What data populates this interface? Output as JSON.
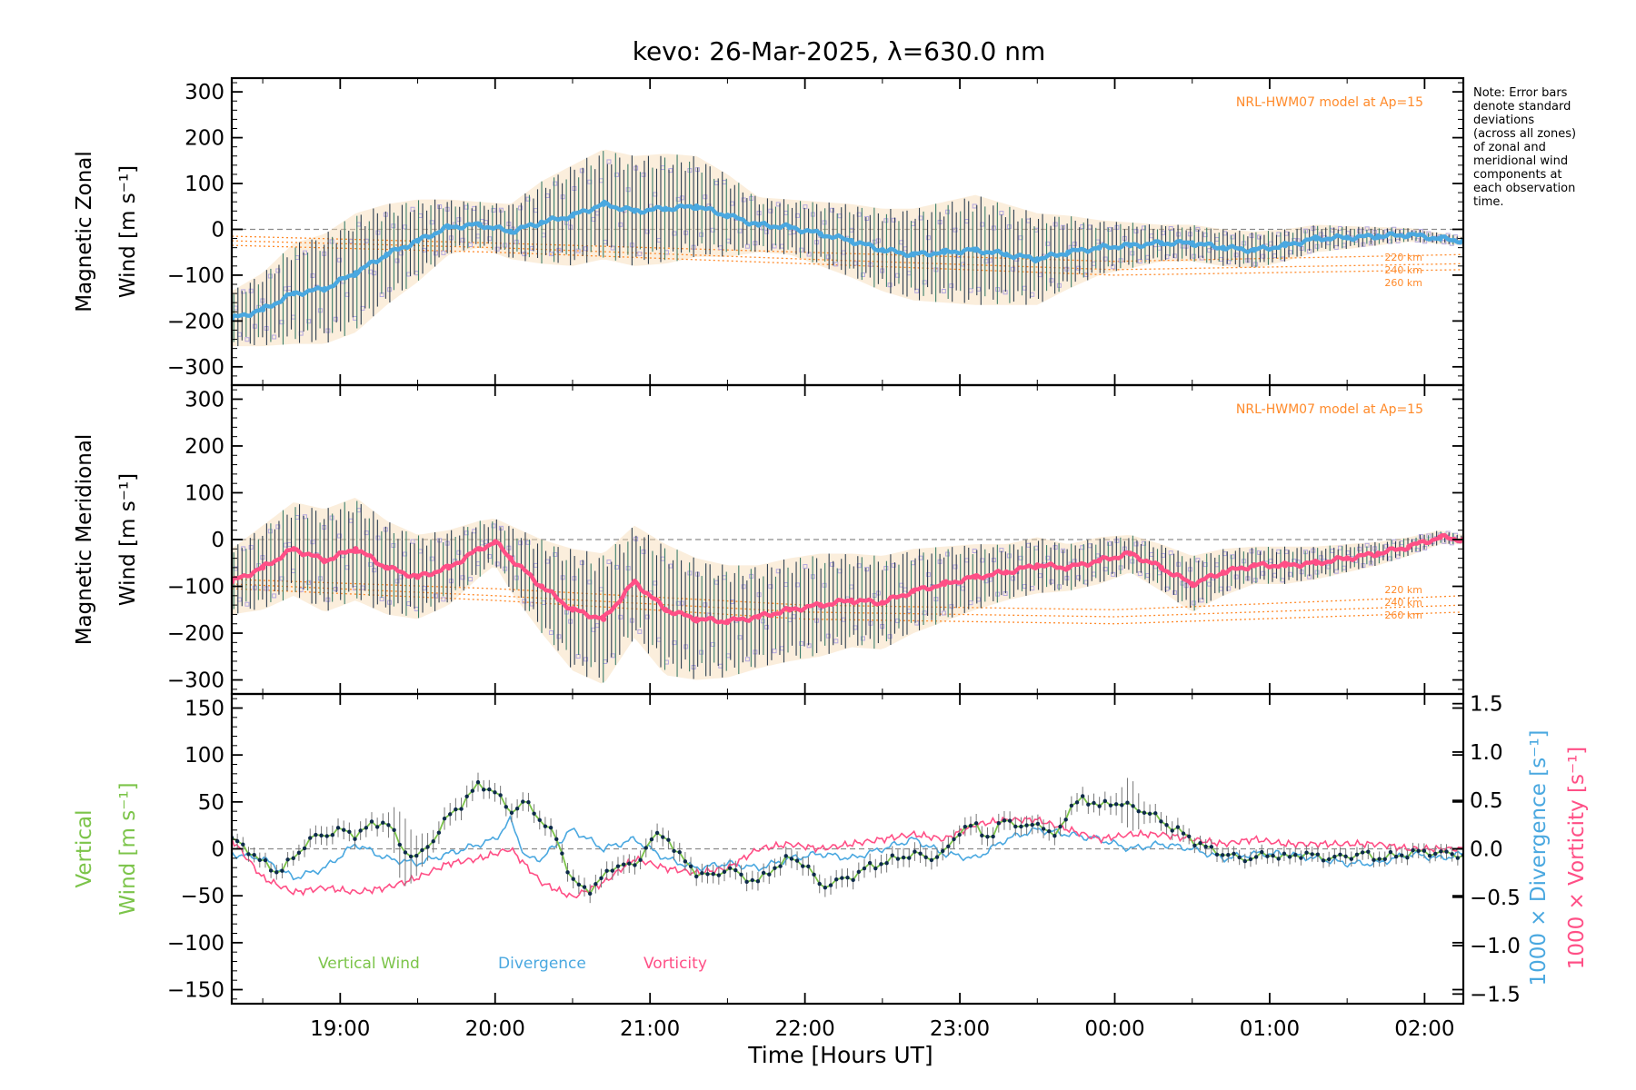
{
  "title": "kevo: 26-Mar-2025, λ=630.0 nm",
  "note_lines": [
    "Note: Error bars",
    "denote standard",
    "deviations",
    "(across all zones)",
    "of zonal and",
    "meridional wind",
    "components at",
    "each observation",
    "time."
  ],
  "colors": {
    "zonal": "#4aa8e0",
    "meridional": "#ff4f86",
    "vertical": "#7cc44a",
    "divergence": "#4aa8e0",
    "vorticity": "#ff4f86",
    "model": "#ff8a2a",
    "scatter": "#b4a8de",
    "errorbar": "#2c3e50",
    "zero_line": "#8a8a8a"
  },
  "chart_data": [
    {
      "type": "line",
      "panel": "zonal",
      "title": "",
      "xlabel": "",
      "ylabel_line1": "Magnetic Zonal",
      "ylabel_line2": "Wind [m s⁻¹]",
      "xlim": [
        18.3,
        26.25
      ],
      "ylim": [
        -340,
        330
      ],
      "yticks": [
        300,
        200,
        100,
        0,
        -100,
        -200,
        -300
      ],
      "yticklabels": [
        "300",
        "200",
        "100",
        "0",
        "−100",
        "−200",
        "−300"
      ],
      "model_label": "NRL-HWM07 model at Ap=15",
      "model_heights": [
        "220 km",
        "240 km",
        "260 km"
      ],
      "model_lines": [
        {
          "name": "220 km",
          "x": [
            18.3,
            20,
            22,
            24,
            26.25
          ],
          "y": [
            -15,
            -30,
            -50,
            -70,
            -55
          ]
        },
        {
          "name": "240 km",
          "x": [
            18.3,
            20,
            22,
            24,
            26.25
          ],
          "y": [
            -25,
            -40,
            -65,
            -88,
            -75
          ]
        },
        {
          "name": "260 km",
          "x": [
            18.3,
            20,
            22,
            24,
            26.25
          ],
          "y": [
            -35,
            -50,
            -75,
            -100,
            -88
          ]
        }
      ],
      "series": [
        {
          "name": "Mean zonal wind",
          "x": [
            18.3,
            18.5,
            18.7,
            18.9,
            19.1,
            19.3,
            19.5,
            19.7,
            19.9,
            20.1,
            20.3,
            20.5,
            20.7,
            20.9,
            21.1,
            21.3,
            21.5,
            21.7,
            21.9,
            22.1,
            22.3,
            22.5,
            22.7,
            22.9,
            23.1,
            23.3,
            23.5,
            23.7,
            23.9,
            24.1,
            24.3,
            24.5,
            24.7,
            24.9,
            25.1,
            25.3,
            25.5,
            25.7,
            25.9,
            26.1,
            26.25
          ],
          "y": [
            -195,
            -175,
            -140,
            -130,
            -95,
            -55,
            -25,
            5,
            10,
            -5,
            15,
            30,
            55,
            40,
            45,
            50,
            30,
            10,
            5,
            -10,
            -25,
            -45,
            -55,
            -50,
            -45,
            -55,
            -65,
            -50,
            -40,
            -35,
            -30,
            -30,
            -40,
            -45,
            -35,
            -20,
            -18,
            -15,
            -12,
            -20,
            -25
          ],
          "err": [
            60,
            80,
            110,
            120,
            130,
            110,
            90,
            60,
            50,
            60,
            90,
            110,
            120,
            120,
            120,
            110,
            90,
            60,
            60,
            70,
            80,
            90,
            100,
            110,
            120,
            110,
            100,
            80,
            60,
            50,
            40,
            40,
            40,
            40,
            35,
            30,
            25,
            20,
            15,
            12,
            10
          ]
        }
      ]
    },
    {
      "type": "line",
      "panel": "meridional",
      "title": "",
      "xlabel": "",
      "ylabel_line1": "Magnetic Meridional",
      "ylabel_line2": "Wind [m s⁻¹]",
      "xlim": [
        18.3,
        26.25
      ],
      "ylim": [
        -330,
        330
      ],
      "yticks": [
        300,
        200,
        100,
        0,
        -100,
        -200,
        -300
      ],
      "yticklabels": [
        "300",
        "200",
        "100",
        "0",
        "−100",
        "−200",
        "−300"
      ],
      "model_label": "NRL-HWM07 model at Ap=15",
      "model_heights": [
        "220 km",
        "240 km",
        "260 km"
      ],
      "model_lines": [
        {
          "name": "220 km",
          "x": [
            18.3,
            20,
            22,
            24,
            26.25
          ],
          "y": [
            -85,
            -105,
            -140,
            -150,
            -120
          ]
        },
        {
          "name": "240 km",
          "x": [
            18.3,
            20,
            22,
            24,
            26.25
          ],
          "y": [
            -95,
            -120,
            -155,
            -165,
            -140
          ]
        },
        {
          "name": "260 km",
          "x": [
            18.3,
            20,
            22,
            24,
            26.25
          ],
          "y": [
            -105,
            -130,
            -170,
            -180,
            -155
          ]
        }
      ],
      "series": [
        {
          "name": "Mean meridional wind",
          "x": [
            18.3,
            18.5,
            18.7,
            18.9,
            19.1,
            19.3,
            19.5,
            19.7,
            19.9,
            20.0,
            20.1,
            20.3,
            20.5,
            20.7,
            20.9,
            21.1,
            21.3,
            21.5,
            21.7,
            21.9,
            22.1,
            22.3,
            22.5,
            22.7,
            22.9,
            23.1,
            23.3,
            23.5,
            23.7,
            23.9,
            24.1,
            24.3,
            24.5,
            24.7,
            24.9,
            25.1,
            25.3,
            25.5,
            25.7,
            25.9,
            26.1,
            26.25
          ],
          "y": [
            -90,
            -60,
            -20,
            -45,
            -20,
            -60,
            -80,
            -60,
            -20,
            -5,
            -40,
            -100,
            -150,
            -170,
            -90,
            -150,
            -170,
            -175,
            -165,
            -150,
            -140,
            -130,
            -135,
            -110,
            -95,
            -80,
            -70,
            -55,
            -60,
            -45,
            -30,
            -60,
            -95,
            -70,
            -55,
            -55,
            -50,
            -40,
            -30,
            -15,
            5,
            0
          ],
          "err": [
            70,
            90,
            100,
            110,
            110,
            100,
            90,
            80,
            60,
            50,
            70,
            100,
            130,
            140,
            120,
            140,
            130,
            120,
            110,
            110,
            110,
            100,
            100,
            90,
            80,
            70,
            60,
            60,
            50,
            50,
            40,
            50,
            60,
            50,
            40,
            40,
            35,
            30,
            25,
            20,
            15,
            10
          ]
        }
      ]
    },
    {
      "type": "line",
      "panel": "vertical",
      "title": "",
      "xlabel": "Time [Hours UT]",
      "ylabel_line1": "Vertical",
      "ylabel_line2": "Wind [m s⁻¹]",
      "ylabel_right1": "1000 × Divergence [s⁻¹]",
      "ylabel_right2": "1000 × Vorticity [s⁻¹]",
      "xlim": [
        18.3,
        26.25
      ],
      "ylim": [
        -165,
        165
      ],
      "y2lim": [
        -1.6,
        1.6
      ],
      "yticks": [
        150,
        100,
        50,
        0,
        -50,
        -100,
        -150
      ],
      "yticklabels": [
        "150",
        "100",
        "50",
        "0",
        "−50",
        "−100",
        "−150"
      ],
      "y2ticks": [
        1.5,
        1.0,
        0.5,
        0.0,
        -0.5,
        -1.0,
        -1.5
      ],
      "y2ticklabels": [
        "1.5",
        "1.0",
        "0.5",
        "0.0",
        "−0.5",
        "−1.0",
        "−1.5"
      ],
      "xticks": [
        19,
        20,
        21,
        22,
        23,
        24,
        25,
        26
      ],
      "xticklabels": [
        "19:00",
        "20:00",
        "21:00",
        "22:00",
        "23:00",
        "00:00",
        "01:00",
        "02:00"
      ],
      "legend": [
        "Vertical Wind",
        "Divergence",
        "Vorticity"
      ],
      "series": [
        {
          "name": "Vertical Wind",
          "axis": "left",
          "x": [
            18.3,
            18.4,
            18.5,
            18.6,
            18.7,
            18.8,
            18.9,
            19.0,
            19.1,
            19.2,
            19.3,
            19.4,
            19.5,
            19.6,
            19.7,
            19.8,
            19.9,
            20.0,
            20.1,
            20.2,
            20.3,
            20.4,
            20.5,
            20.6,
            20.7,
            20.8,
            20.9,
            21.0,
            21.1,
            21.2,
            21.3,
            21.4,
            21.5,
            21.6,
            21.7,
            21.8,
            21.9,
            22.0,
            22.1,
            22.2,
            22.3,
            22.4,
            22.5,
            22.6,
            22.7,
            22.8,
            22.9,
            23.0,
            23.1,
            23.2,
            23.3,
            23.4,
            23.5,
            23.6,
            23.7,
            23.8,
            23.9,
            24.0,
            24.1,
            24.2,
            24.3,
            24.4,
            24.5,
            24.6,
            24.7,
            24.8,
            24.9,
            25.0,
            25.1,
            25.2,
            25.3,
            25.4,
            25.5,
            25.6,
            25.7,
            25.8,
            25.9,
            26.0,
            26.1,
            26.2,
            26.25
          ],
          "y": [
            10,
            0,
            -15,
            -25,
            -10,
            10,
            15,
            20,
            15,
            25,
            30,
            0,
            -10,
            10,
            35,
            50,
            70,
            60,
            40,
            50,
            30,
            10,
            -35,
            -45,
            -30,
            -15,
            -20,
            10,
            15,
            -10,
            -25,
            -30,
            -20,
            -30,
            -35,
            -20,
            -10,
            -15,
            -40,
            -35,
            -30,
            -20,
            -15,
            -10,
            -5,
            -10,
            -5,
            20,
            25,
            10,
            35,
            20,
            30,
            10,
            40,
            55,
            45,
            50,
            45,
            40,
            30,
            20,
            10,
            0,
            -5,
            -10,
            -10,
            -5,
            -10,
            -5,
            -8,
            -10,
            -8,
            -5,
            -10,
            -8,
            -5,
            -3,
            -5,
            -5,
            -8
          ],
          "err": [
            8,
            8,
            8,
            8,
            8,
            10,
            10,
            10,
            10,
            10,
            10,
            40,
            20,
            12,
            12,
            12,
            10,
            10,
            10,
            10,
            10,
            10,
            10,
            10,
            10,
            10,
            10,
            10,
            10,
            10,
            10,
            10,
            10,
            10,
            10,
            10,
            10,
            10,
            10,
            10,
            10,
            10,
            10,
            10,
            10,
            10,
            10,
            10,
            10,
            10,
            10,
            10,
            10,
            10,
            10,
            10,
            10,
            10,
            30,
            10,
            10,
            10,
            8,
            8,
            8,
            8,
            8,
            8,
            8,
            8,
            8,
            8,
            8,
            8,
            8,
            8,
            8,
            8,
            8,
            8,
            8
          ]
        },
        {
          "name": "Divergence",
          "axis": "right",
          "x": [
            18.3,
            18.5,
            18.7,
            18.9,
            19.1,
            19.3,
            19.5,
            19.7,
            19.9,
            20.0,
            20.1,
            20.2,
            20.3,
            20.5,
            20.7,
            20.9,
            21.1,
            21.3,
            21.5,
            21.7,
            21.9,
            22.1,
            22.3,
            22.5,
            22.7,
            22.9,
            23.1,
            23.3,
            23.5,
            23.7,
            23.9,
            24.1,
            24.3,
            24.5,
            24.7,
            24.9,
            25.1,
            25.3,
            25.5,
            25.7,
            25.9,
            26.1,
            26.25
          ],
          "y": [
            -0.05,
            -0.1,
            -0.3,
            -0.2,
            0.05,
            -0.1,
            -0.15,
            -0.05,
            0.05,
            0.1,
            0.3,
            -0.1,
            -0.1,
            0.2,
            0.0,
            0.1,
            -0.1,
            -0.2,
            -0.15,
            -0.2,
            -0.1,
            -0.05,
            -0.1,
            0.0,
            0.1,
            -0.05,
            -0.1,
            0.1,
            0.2,
            0.15,
            0.1,
            0.0,
            0.05,
            0.0,
            -0.1,
            -0.05,
            -0.05,
            -0.1,
            -0.15,
            -0.15,
            -0.05,
            -0.1,
            -0.05
          ]
        },
        {
          "name": "Vorticity",
          "axis": "right",
          "x": [
            18.3,
            18.5,
            18.7,
            18.9,
            19.1,
            19.3,
            19.5,
            19.7,
            19.9,
            20.1,
            20.3,
            20.5,
            20.7,
            20.9,
            21.1,
            21.3,
            21.5,
            21.7,
            21.9,
            22.1,
            22.3,
            22.5,
            22.7,
            22.9,
            23.1,
            23.3,
            23.5,
            23.7,
            23.9,
            24.1,
            24.3,
            24.5,
            24.7,
            24.9,
            25.1,
            25.3,
            25.5,
            25.7,
            25.9,
            26.1,
            26.25
          ],
          "y": [
            0.1,
            -0.3,
            -0.45,
            -0.4,
            -0.45,
            -0.4,
            -0.3,
            -0.15,
            -0.1,
            0.0,
            -0.35,
            -0.5,
            -0.35,
            -0.1,
            -0.2,
            -0.25,
            -0.2,
            0.0,
            0.05,
            0.0,
            0.05,
            0.1,
            0.15,
            0.1,
            0.25,
            0.3,
            0.3,
            0.2,
            0.1,
            0.15,
            0.15,
            0.1,
            0.05,
            0.1,
            0.05,
            0.05,
            0.05,
            0.05,
            0.0,
            0.0,
            0.0
          ]
        }
      ]
    }
  ]
}
